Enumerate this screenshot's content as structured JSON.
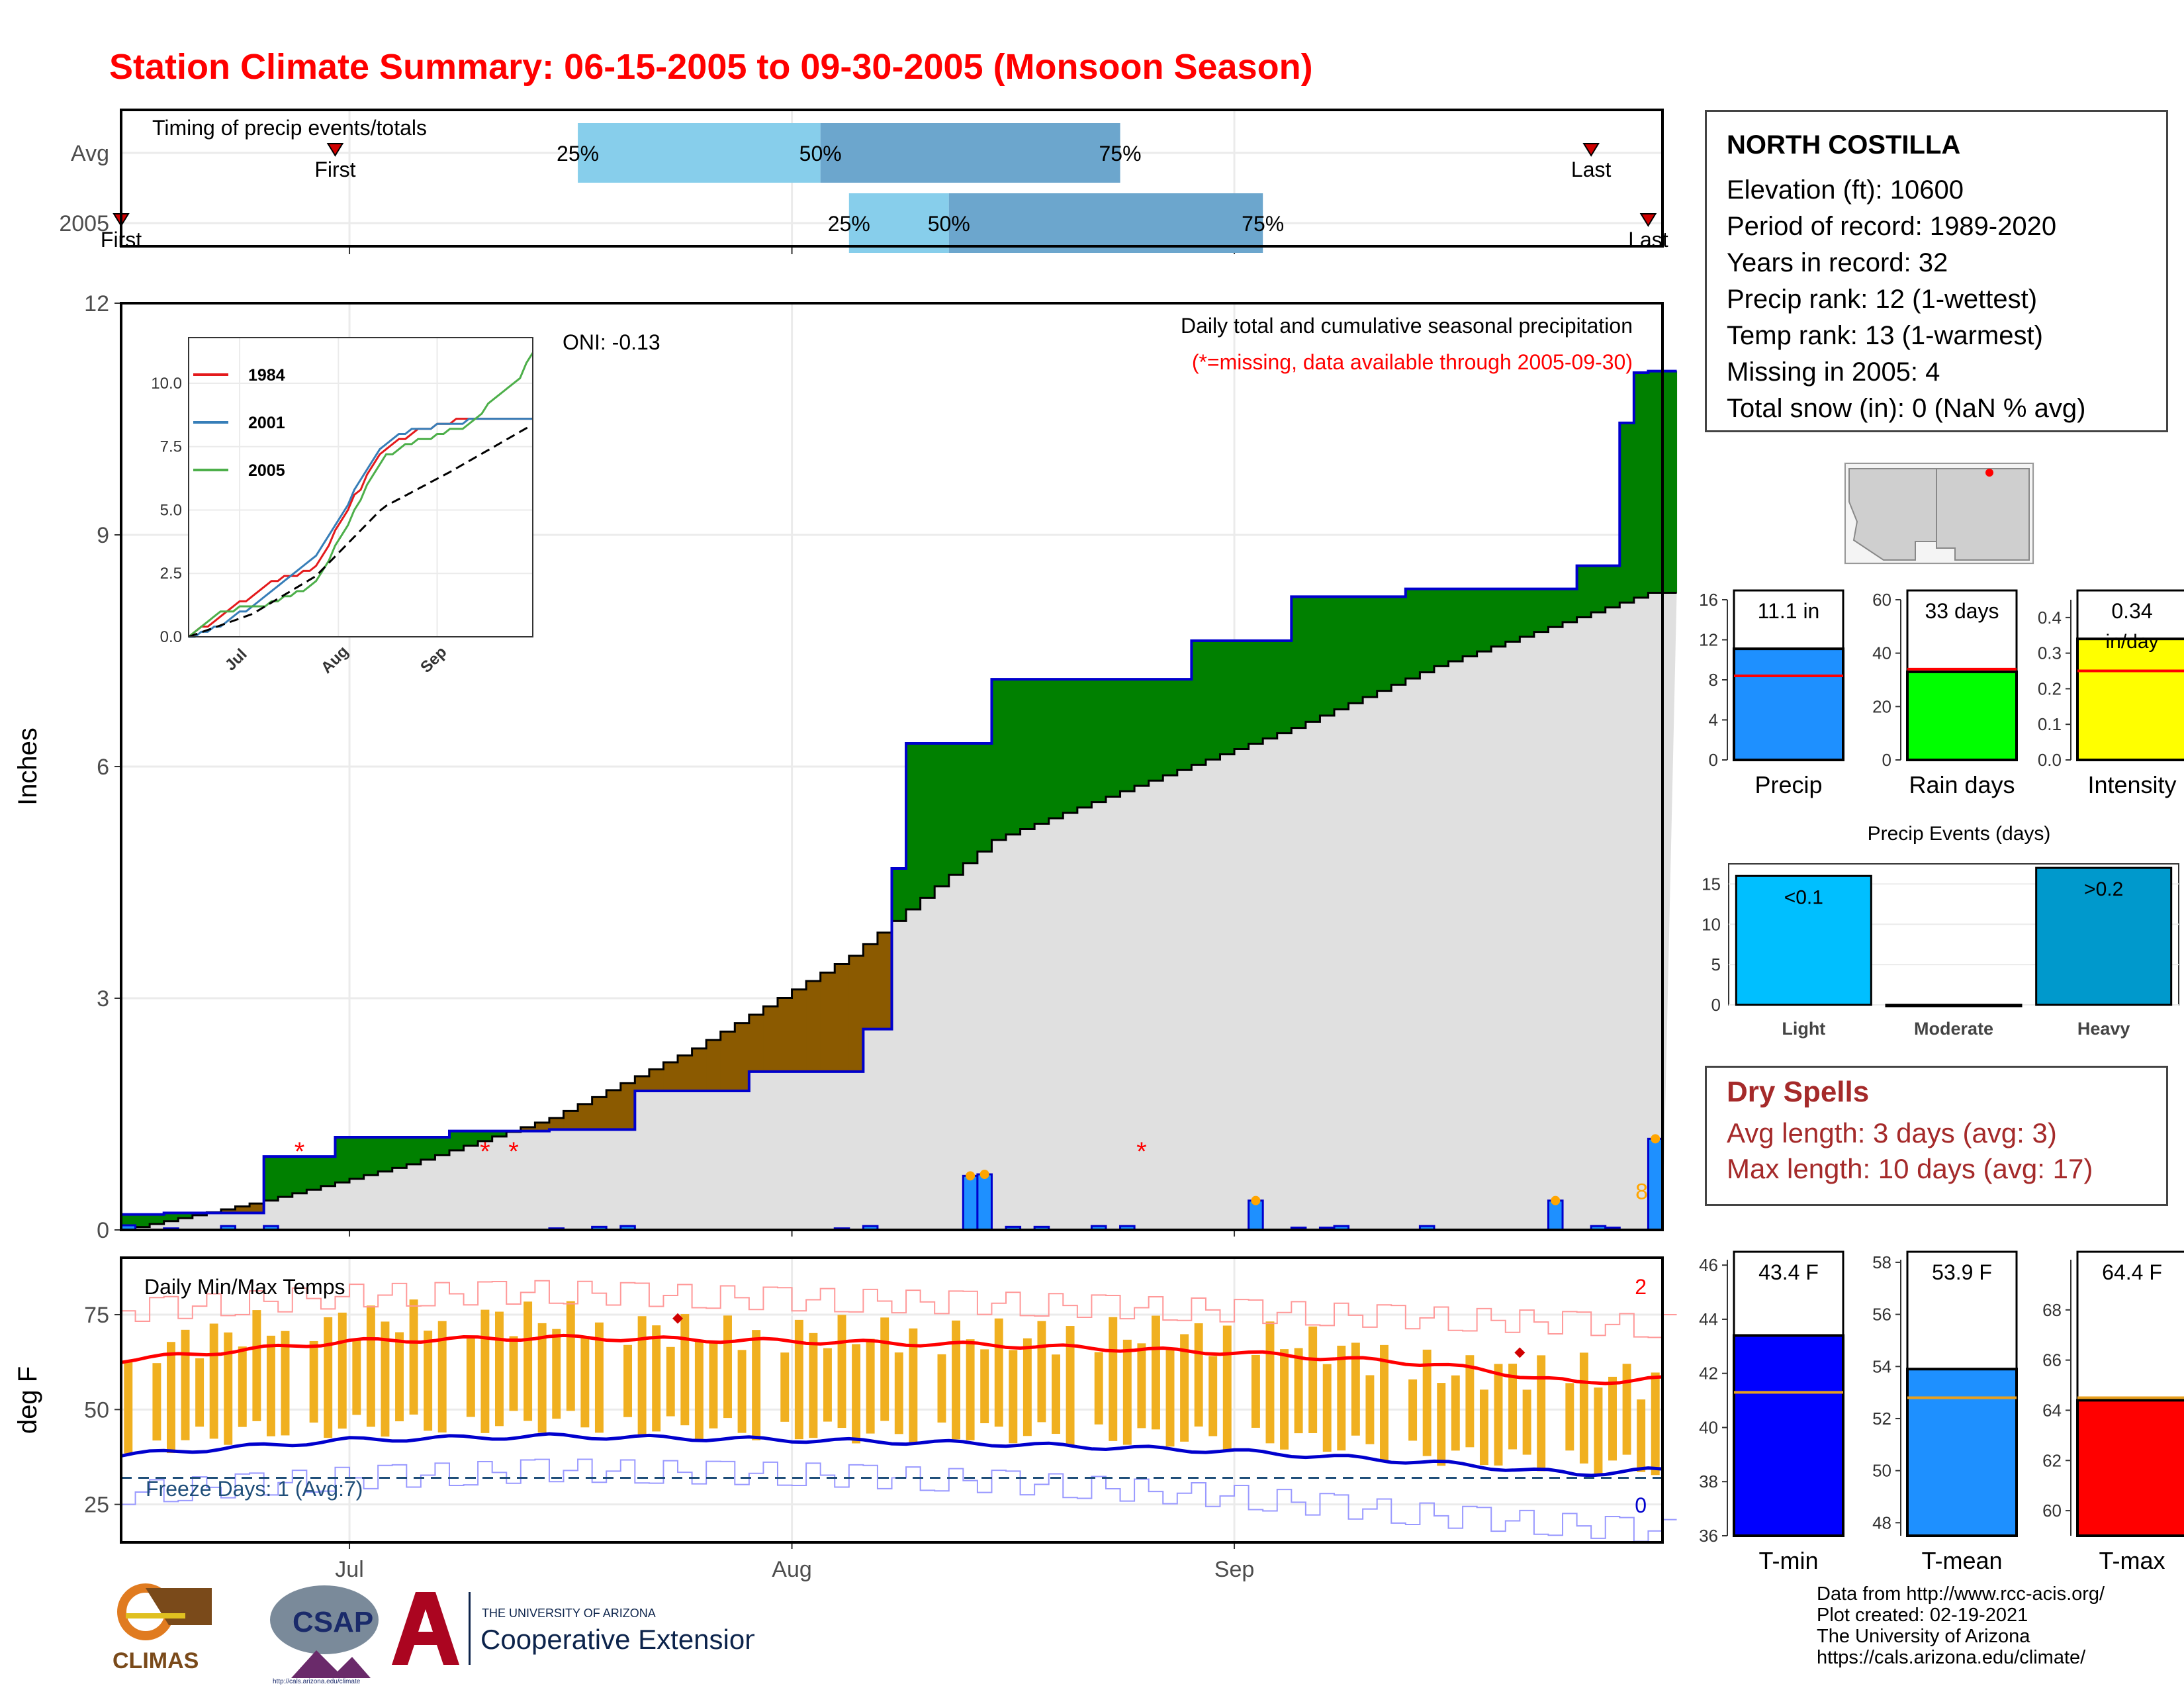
{
  "title": "Station Climate Summary: 06-15-2005 to 09-30-2005 (Monsoon Season)",
  "timing": {
    "title": "Timing of precip events/totals",
    "rows": [
      "Avg",
      "2005"
    ],
    "avg": {
      "first": "06-30",
      "q25": "07-17",
      "q50": "08-03",
      "q75": "08-24",
      "last": "09-26"
    },
    "y2005": {
      "first": "06-15",
      "q25": "08-05",
      "q50": "08-12",
      "q75": "09-03",
      "last": "09-30"
    },
    "label_first": "First",
    "label_last": "Last",
    "pct": [
      "25%",
      "50%",
      "75%"
    ],
    "colors": {
      "light": "#87ceeb",
      "dark": "#6ca6cd"
    }
  },
  "chart_data": [
    {
      "type": "area",
      "name": "precipitation",
      "title": "Daily total and cumulative seasonal precipitation",
      "subtitle": "(*=missing, data available through 2005-09-30)",
      "ylabel": "Inches",
      "ylim": [
        0,
        12
      ],
      "yticks": [
        0,
        3,
        6,
        9,
        12
      ],
      "x_range": [
        "06-15",
        "09-30"
      ],
      "xticks": [
        "Jul",
        "Aug",
        "Sep"
      ],
      "oni": "ONI: -0.13",
      "count_label": "8",
      "avg_cumulative": {
        "x": [
          "06-15",
          "06-25",
          "07-05",
          "07-15",
          "07-25",
          "08-05",
          "08-15",
          "08-25",
          "09-05",
          "09-15",
          "09-30"
        ],
        "y": [
          0.0,
          0.38,
          0.85,
          1.45,
          2.35,
          3.55,
          5.05,
          5.75,
          6.5,
          7.3,
          8.25
        ]
      },
      "cum_2005": {
        "x": [
          "06-15",
          "06-18",
          "06-25",
          "06-30",
          "07-08",
          "07-15",
          "07-21",
          "07-29",
          "08-06",
          "08-08",
          "08-09",
          "08-15",
          "08-29",
          "09-05",
          "09-13",
          "09-25",
          "09-28",
          "09-29",
          "09-30"
        ],
        "y": [
          0.2,
          0.22,
          0.95,
          1.2,
          1.28,
          1.3,
          1.8,
          2.05,
          2.6,
          4.68,
          6.3,
          7.13,
          7.63,
          8.2,
          8.3,
          8.6,
          10.45,
          11.1,
          11.12
        ]
      },
      "daily_precip": {
        "x": [
          "06-15",
          "06-18",
          "06-22",
          "06-25",
          "07-15",
          "07-18",
          "07-20",
          "08-04",
          "08-06",
          "08-13",
          "08-14",
          "08-16",
          "08-18",
          "08-22",
          "08-24",
          "09-02",
          "09-05",
          "09-07",
          "09-08",
          "09-14",
          "09-23",
          "09-26",
          "09-27",
          "09-30"
        ],
        "y": [
          0.06,
          0.02,
          0.05,
          0.05,
          0.02,
          0.04,
          0.05,
          0.02,
          0.05,
          0.7,
          0.72,
          0.04,
          0.04,
          0.05,
          0.05,
          0.38,
          0.03,
          0.03,
          0.05,
          0.05,
          0.38,
          0.05,
          0.03,
          1.18
        ]
      },
      "missing_dates": [
        "06-27",
        "07-10",
        "07-12",
        "08-25"
      ],
      "colors": {
        "above_avg": "#008000",
        "below_avg": "#8b5a00",
        "cumulative_line": "#0000cd",
        "avg_fill": "#e0e0e0",
        "daily_bars": "#1e90ff",
        "missing_marker": "#ff0000",
        "event_marker": "#ffa500"
      }
    },
    {
      "type": "line",
      "name": "inset-cumulative-comparison",
      "yticks": [
        0.0,
        2.5,
        5.0,
        7.5,
        10.0
      ],
      "xticks": [
        "Jul",
        "Aug",
        "Sep"
      ],
      "series": [
        {
          "name": "1984",
          "color": "#e41a1c",
          "x": [
            "06-15",
            "06-25",
            "07-10",
            "07-25",
            "08-05",
            "08-15",
            "08-25",
            "09-10",
            "09-30"
          ],
          "y": [
            0.0,
            0.8,
            2.1,
            2.7,
            5.3,
            7.3,
            8.1,
            8.6,
            8.6
          ]
        },
        {
          "name": "2001",
          "color": "#377eb8",
          "x": [
            "06-15",
            "06-25",
            "07-10",
            "07-25",
            "08-05",
            "08-15",
            "08-25",
            "09-10",
            "09-30"
          ],
          "y": [
            0.0,
            0.4,
            1.7,
            3.2,
            5.5,
            7.6,
            8.2,
            8.5,
            8.6
          ]
        },
        {
          "name": "2005",
          "color": "#4daf4a",
          "x": [
            "06-15",
            "06-25",
            "07-10",
            "07-25",
            "08-05",
            "08-15",
            "08-25",
            "09-10",
            "09-28",
            "09-30"
          ],
          "y": [
            0.0,
            1.0,
            1.3,
            2.1,
            4.7,
            7.1,
            7.7,
            8.3,
            10.4,
            11.1
          ]
        },
        {
          "name": "Avg",
          "color": "#000000",
          "x": [
            "06-15",
            "07-05",
            "07-25",
            "08-15",
            "09-05",
            "09-30"
          ],
          "y": [
            0.0,
            0.9,
            2.4,
            5.1,
            6.5,
            8.3
          ]
        }
      ]
    },
    {
      "type": "line",
      "name": "temperature",
      "title": "Daily Min/Max Temps",
      "ylabel": "deg F",
      "ylim": [
        15,
        90
      ],
      "yticks": [
        25,
        50,
        75
      ],
      "x_range": [
        "06-15",
        "09-30"
      ],
      "xticks": [
        "Jul",
        "Aug",
        "Sep"
      ],
      "freeze_text": "Freeze Days: 1 (Avg:7)",
      "freeze_line": 32,
      "hot_count": "2",
      "cold_count": "0",
      "series": [
        {
          "name": "avg_max",
          "color": "#ff0000",
          "x": [
            "06-15",
            "07-01",
            "07-15",
            "08-01",
            "08-15",
            "09-01",
            "09-15",
            "09-25",
            "09-30"
          ],
          "y": [
            63,
            68,
            69,
            68,
            67,
            65,
            62,
            57,
            58
          ]
        },
        {
          "name": "avg_min",
          "color": "#0000cd",
          "x": [
            "06-15",
            "07-01",
            "07-15",
            "08-01",
            "08-15",
            "09-01",
            "09-15",
            "09-25",
            "09-30"
          ],
          "y": [
            38,
            42,
            43,
            42,
            41,
            39,
            36,
            33,
            34
          ]
        },
        {
          "name": "record_max",
          "color": "#ff9999",
          "x": [
            "06-15",
            "07-01",
            "07-15",
            "08-01",
            "08-15",
            "09-01",
            "09-15",
            "09-30"
          ],
          "y": [
            76,
            80,
            81,
            79,
            78,
            76,
            74,
            72
          ]
        },
        {
          "name": "record_min",
          "color": "#9999ff",
          "x": [
            "06-15",
            "07-01",
            "07-15",
            "08-01",
            "08-15",
            "09-01",
            "09-15",
            "09-30"
          ],
          "y": [
            28,
            32,
            34,
            33,
            31,
            27,
            22,
            18
          ]
        }
      ],
      "daily_range_2005": {
        "x": [
          "06-15",
          "06-25",
          "07-05",
          "07-15",
          "07-25",
          "08-05",
          "08-15",
          "08-25",
          "09-05",
          "09-15",
          "09-25",
          "09-30"
        ],
        "min": [
          40,
          45,
          46,
          47,
          45,
          44,
          44,
          43,
          42,
          38,
          36,
          35
        ],
        "max": [
          65,
          72,
          74,
          74,
          70,
          70,
          69,
          70,
          68,
          60,
          60,
          57
        ],
        "color": "#f0b020"
      }
    },
    {
      "type": "bar",
      "name": "season-precip-summary",
      "panels": [
        {
          "name": "Precip",
          "value": 11.1,
          "label": "11.1 in",
          "avg": 8.4,
          "ylim": [
            0,
            16
          ],
          "yticks": [
            0,
            4,
            8,
            12,
            16
          ],
          "color": "#1e90ff"
        },
        {
          "name": "Rain days",
          "value": 33,
          "label": "33 days",
          "avg": 34,
          "ylim": [
            0,
            60
          ],
          "yticks": [
            0,
            20,
            40,
            60
          ],
          "color": "#00ff00"
        },
        {
          "name": "Intensity",
          "value": 0.34,
          "label": "0.34",
          "unit": "in/day",
          "avg": 0.25,
          "ylim": [
            0,
            0.45
          ],
          "yticks": [
            "0.0",
            "0.1",
            "0.2",
            "0.3",
            "0.4"
          ],
          "color": "#ffff00"
        }
      ]
    },
    {
      "type": "bar",
      "name": "precip-events",
      "title": "Precip Events (days)",
      "categories": [
        "Light",
        "Moderate",
        "Heavy"
      ],
      "values": [
        16,
        0,
        17
      ],
      "bar_labels": [
        "<0.1",
        "",
        ">0.2"
      ],
      "colors": [
        "#00bfff",
        "#0099cc",
        "#0099cc"
      ],
      "ylim": [
        0,
        17.5
      ],
      "yticks": [
        0,
        5,
        10,
        15
      ]
    },
    {
      "type": "bar",
      "name": "temperature-summary",
      "panels": [
        {
          "name": "T-min",
          "value": 43.4,
          "label": "43.4 F",
          "avg": 41.3,
          "ylim": [
            36,
            46.2
          ],
          "yticks": [
            36,
            38,
            40,
            42,
            44,
            46
          ],
          "color": "#0000ff"
        },
        {
          "name": "T-mean",
          "value": 53.9,
          "label": "53.9 F",
          "avg": 52.8,
          "ylim": [
            47.5,
            58.1
          ],
          "yticks": [
            48,
            50,
            52,
            54,
            56,
            58
          ],
          "color": "#1e90ff"
        },
        {
          "name": "T-max",
          "value": 64.4,
          "label": "64.4 F",
          "avg": 64.5,
          "ylim": [
            59,
            70
          ],
          "yticks": [
            60,
            62,
            64,
            66,
            68
          ],
          "color": "#ff0000"
        }
      ]
    }
  ],
  "station": {
    "name": "NORTH COSTILLA",
    "lines": [
      "Elevation (ft): 10600",
      "Period of record: 1989-2020",
      "Years in record: 32",
      "Precip rank: 12 (1-wettest)",
      "Temp rank: 13 (1-warmest)",
      "Missing in 2005: 4",
      "Total snow (in): 0 (NaN % avg)"
    ]
  },
  "dry_spells": {
    "title": "Dry Spells",
    "avg_length": "Avg length: 3 days (avg: 3)",
    "max_length": "Max length: 10 days (avg: 17)"
  },
  "logos": {
    "climas": "CLIMAS",
    "csap": "CSAP",
    "csap_url": "http://cals.arizona.edu/climate",
    "ua_small": "THE UNIVERSITY OF ARIZONA",
    "ua_big": "Cooperative Extension"
  },
  "credits": [
    "Data from http://www.rcc-acis.org/",
    "Plot created: 02-19-2021",
    "The University of Arizona",
    "https://cals.arizona.edu/climate/"
  ]
}
